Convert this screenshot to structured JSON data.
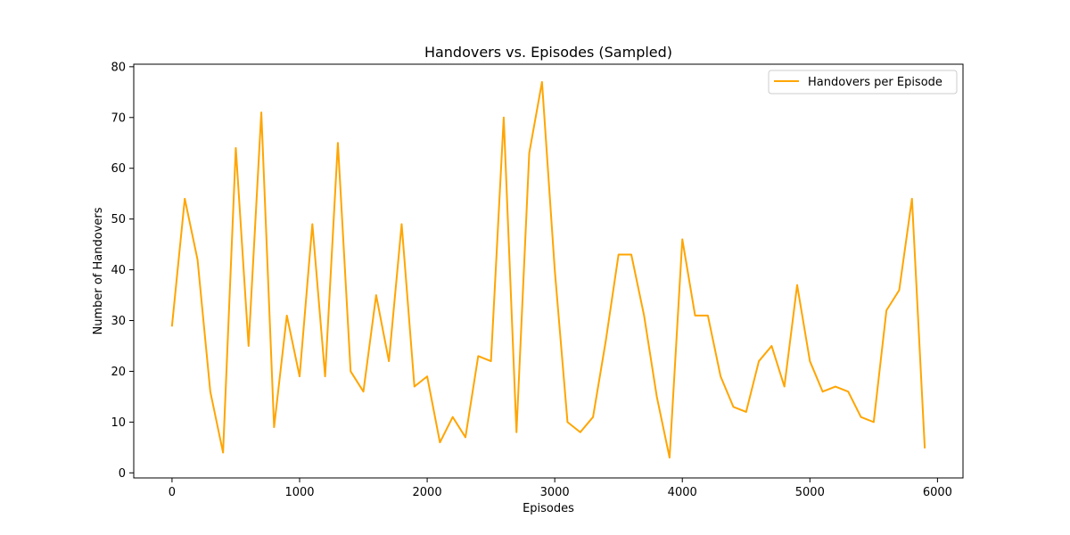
{
  "chart_data": {
    "type": "line",
    "title": "Handovers vs. Episodes (Sampled)",
    "xlabel": "Episodes",
    "ylabel": "Number of Handovers",
    "xlim": [
      -300,
      6200
    ],
    "ylim": [
      -1,
      80.5
    ],
    "xticks": [
      0,
      1000,
      2000,
      3000,
      4000,
      5000,
      6000
    ],
    "yticks": [
      0,
      10,
      20,
      30,
      40,
      50,
      60,
      70,
      80
    ],
    "grid": false,
    "legend_position": "top-right",
    "series": [
      {
        "name": "Handovers per Episode",
        "color": "#FFA500",
        "x": [
          0,
          100,
          200,
          300,
          400,
          500,
          600,
          700,
          800,
          900,
          1000,
          1100,
          1200,
          1300,
          1400,
          1500,
          1600,
          1700,
          1800,
          1900,
          2000,
          2100,
          2200,
          2300,
          2400,
          2500,
          2600,
          2700,
          2800,
          2900,
          3000,
          3100,
          3200,
          3300,
          3400,
          3500,
          3600,
          3700,
          3800,
          3900,
          4000,
          4100,
          4200,
          4300,
          4400,
          4500,
          4600,
          4700,
          4800,
          4900,
          5000,
          5100,
          5200,
          5300,
          5400,
          5500,
          5600,
          5700,
          5800,
          5900
        ],
        "values": [
          29,
          54,
          42,
          16,
          4,
          64,
          25,
          71,
          9,
          31,
          19,
          49,
          19,
          65,
          20,
          16,
          35,
          22,
          49,
          17,
          19,
          6,
          11,
          7,
          23,
          22,
          70,
          8,
          63,
          77,
          40,
          10,
          8,
          11,
          26,
          43,
          43,
          31,
          15,
          3,
          46,
          31,
          31,
          19,
          13,
          12,
          22,
          25,
          17,
          37,
          22,
          16,
          17,
          16,
          11,
          10,
          32,
          36,
          54,
          5
        ]
      }
    ]
  }
}
